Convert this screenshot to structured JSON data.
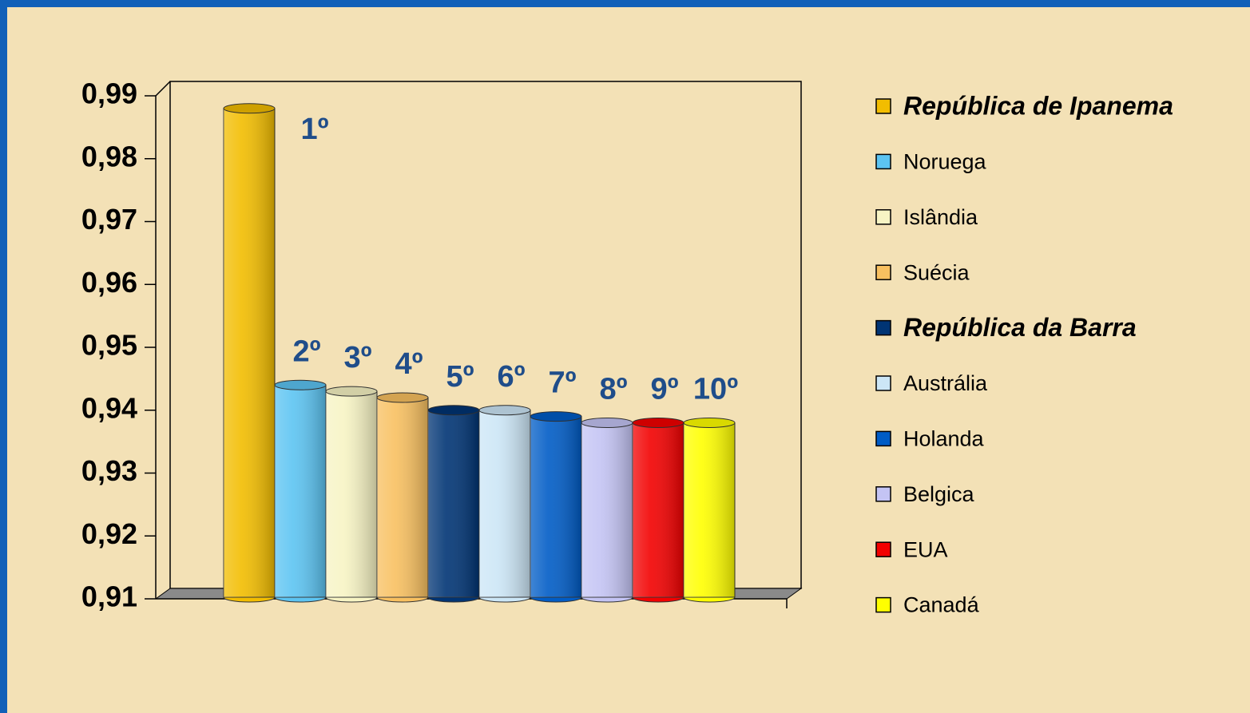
{
  "chart_data": {
    "type": "bar3d",
    "ylim": [
      0.91,
      0.99
    ],
    "yticks": [
      {
        "value": 0.91,
        "label": "0,91"
      },
      {
        "value": 0.92,
        "label": "0,92"
      },
      {
        "value": 0.93,
        "label": "0,93"
      },
      {
        "value": 0.94,
        "label": "0,94"
      },
      {
        "value": 0.95,
        "label": "0,95"
      },
      {
        "value": 0.96,
        "label": "0,96"
      },
      {
        "value": 0.97,
        "label": "0,97"
      },
      {
        "value": 0.98,
        "label": "0,98"
      },
      {
        "value": 0.99,
        "label": "0,99"
      }
    ],
    "legend": "right",
    "series": [
      {
        "name": "República de Ipanema",
        "color": "#f2bd00",
        "values": [
          0.988
        ],
        "rank": "1º",
        "bold_italic": true
      },
      {
        "name": "Noruega",
        "color": "#5cc4f2",
        "values": [
          0.944
        ],
        "rank": "2º"
      },
      {
        "name": "Islândia",
        "color": "#f7f4c4",
        "values": [
          0.943
        ],
        "rank": "3º"
      },
      {
        "name": "Suécia",
        "color": "#f8c060",
        "values": [
          0.942
        ],
        "rank": "4º"
      },
      {
        "name": "República da Barra",
        "color": "#003474",
        "values": [
          0.94
        ],
        "rank": "5º",
        "bold_italic": true
      },
      {
        "name": "Austrália",
        "color": "#cce6f6",
        "values": [
          0.94
        ],
        "rank": "6º"
      },
      {
        "name": "Holanda",
        "color": "#005cc6",
        "values": [
          0.939
        ],
        "rank": "7º"
      },
      {
        "name": "Belgica",
        "color": "#c4c4f4",
        "values": [
          0.938
        ],
        "rank": "8º"
      },
      {
        "name": "EUA",
        "color": "#f20000",
        "values": [
          0.938
        ],
        "rank": "9º"
      },
      {
        "name": "Canadá",
        "color": "#ffff00",
        "values": [
          0.938
        ],
        "rank": "10º"
      }
    ]
  }
}
